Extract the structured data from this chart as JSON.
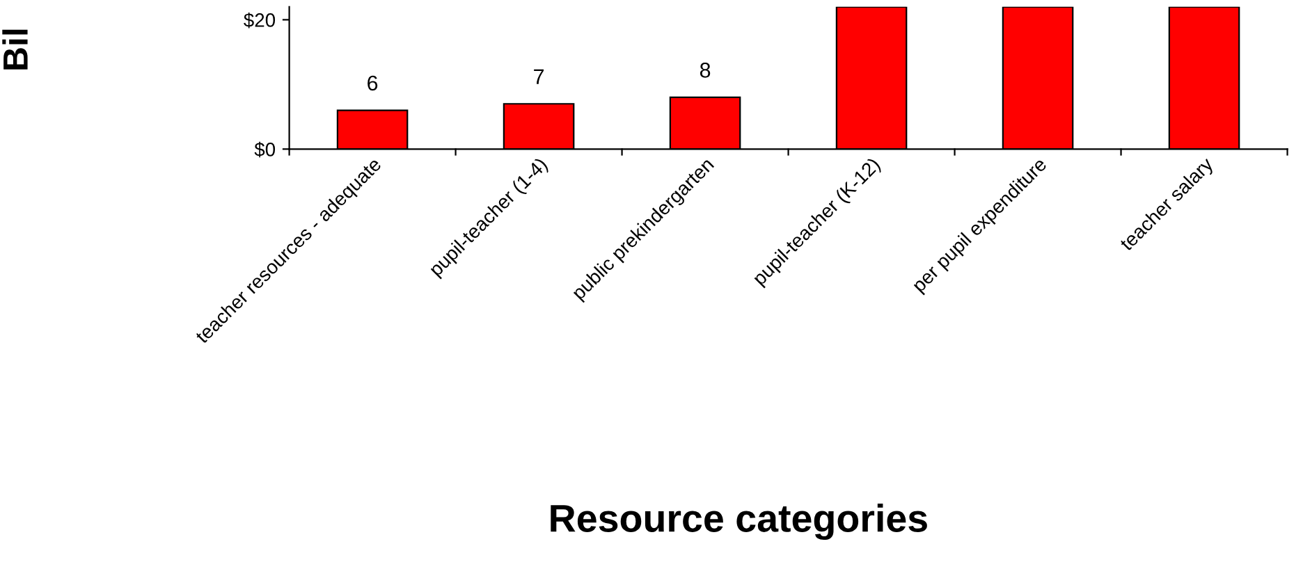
{
  "chart_data": {
    "type": "bar",
    "xlabel": "Resource categories",
    "ylabel": "Bil",
    "categories": [
      "teacher resources - adequate",
      "pupil-teacher (1-4)",
      "public prekindergarten",
      "pupil-teacher (K-12)",
      "per pupil expenditure",
      "teacher salary"
    ],
    "values": [
      6,
      7,
      8,
      22,
      22,
      22
    ],
    "value_labels": [
      "6",
      "7",
      "8",
      null,
      null,
      null
    ],
    "color": "#ff0000",
    "ylim": [
      0,
      22
    ],
    "yticks": [
      {
        "value": 0,
        "label": "$0"
      },
      {
        "value": 20,
        "label": "$20"
      }
    ],
    "grid": false,
    "legend": false
  }
}
